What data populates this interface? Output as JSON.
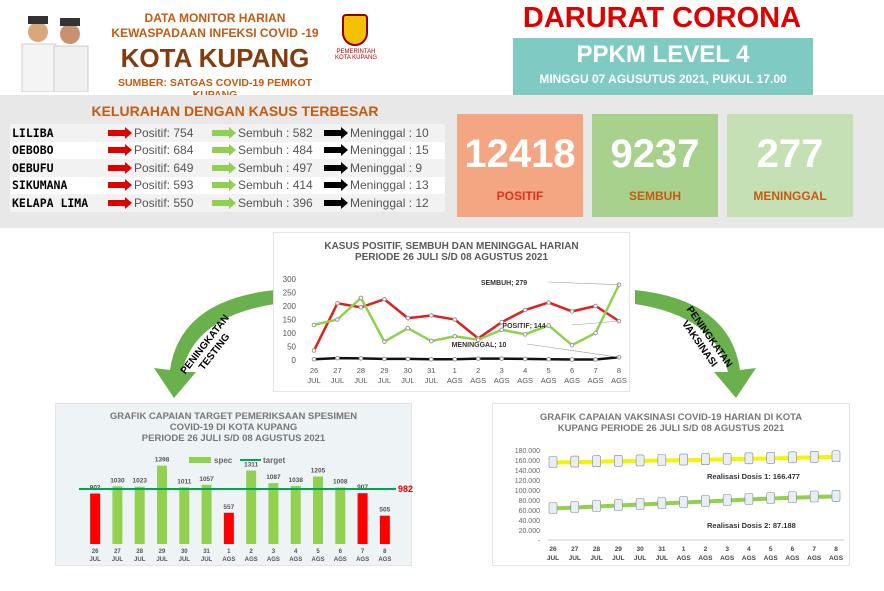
{
  "header": {
    "line1": "DATA MONITOR HARIAN",
    "line2": "KEWASPADAAN INFEKSI COVID -19",
    "city": "KOTA KUPANG",
    "source": "SUMBER: SATGAS COVID-19 PEMKOT KUPANG",
    "logo_text": "PEMERINTAH KOTA KUPANG",
    "emergency": "DARURAT CORONA",
    "level": "PPKM LEVEL 4",
    "date": "MINGGU 07 AGUSUTUS 2021, PUKUL 17.00"
  },
  "table": {
    "title": "KELURAHAN DENGAN KASUS TERBESAR",
    "rows": [
      {
        "name": "LILIBA",
        "positif": "Positif: 754",
        "sembuh": "Sembuh : 582",
        "meninggal": "Meninggal : 10"
      },
      {
        "name": "OEBOBO",
        "positif": "Positif: 684",
        "sembuh": "Sembuh : 484",
        "meninggal": "Meninggal : 15"
      },
      {
        "name": "OEBUFU",
        "positif": "Positif: 649",
        "sembuh": "Sembuh : 497",
        "meninggal": "Meninggal :  9"
      },
      {
        "name": "SIKUMANA",
        "positif": "Positif: 593",
        "sembuh": "Sembuh : 414",
        "meninggal": "Meninggal : 13"
      },
      {
        "name": "KELAPA LIMA",
        "positif": "Positif: 550",
        "sembuh": "Sembuh : 396",
        "meninggal": "Meninggal : 12"
      }
    ],
    "arrow_colors": {
      "positif": "#e00000",
      "sembuh": "#8fd14f",
      "meninggal": "#000000"
    }
  },
  "stats": [
    {
      "value": "12418",
      "label": "POSITIF",
      "bg": "#f4a582",
      "label_color": "#e0301e"
    },
    {
      "value": "9237",
      "label": "SEMBUH",
      "bg": "#a9d18e",
      "label_color": "#c55a11"
    },
    {
      "value": "277",
      "label": "MENINGGAL",
      "bg": "#c5e0b4",
      "label_color": "#c55a11"
    }
  ],
  "arrows": {
    "left": "PENINGKATAN TESTING",
    "right": "PENINGKATAN VAKSINASI",
    "color": "#6ab04c"
  },
  "chart_data": [
    {
      "type": "line",
      "title": "KASUS POSITIF, SEMBUH DAN MENINGGAL HARIAN",
      "subtitle": "PERIODE 26 JULI S/D 08 AGUSTUS 2021",
      "categories": [
        "26 JUL",
        "27 JUL",
        "28 JUL",
        "29 JUL",
        "30 JUL",
        "31 JUL",
        "1 AGS",
        "2 AGS",
        "3 AGS",
        "4 AGS",
        "5 AGS",
        "6 AGS",
        "7 AGS",
        "8 AGS"
      ],
      "ylim": [
        0,
        300
      ],
      "yticks": [
        0,
        50,
        100,
        150,
        200,
        250,
        300
      ],
      "series": [
        {
          "key": "positif",
          "color": "#e02020",
          "values": [
            35,
            210,
            195,
            225,
            155,
            165,
            150,
            80,
            140,
            185,
            213,
            180,
            200,
            144
          ]
        },
        {
          "key": "sembuh",
          "color": "#8fd14f",
          "values": [
            130,
            150,
            230,
            68,
            118,
            70,
            88,
            75,
            112,
            95,
            128,
            55,
            100,
            279
          ]
        },
        {
          "key": "meninggal",
          "color": "#111111",
          "values": [
            3,
            7,
            6,
            4,
            4,
            3,
            3,
            5,
            5,
            4,
            3,
            2,
            2,
            10
          ]
        }
      ],
      "annotations": [
        "SEMBUH; 279",
        "POSITIF; 144",
        "MENINGGAL; 10"
      ]
    },
    {
      "type": "bar",
      "title": "GRAFIK CAPAIAN TARGET PEMERIKSAAN SPESIMEN",
      "subtitle": "COVID-19 DI KOTA KUPANG",
      "subtitle2": "PERIODE 26 JULI S/D 08 AGUSTUS 2021",
      "legend": [
        "spec",
        "target"
      ],
      "categories": [
        "26 JUL",
        "27 JUL",
        "28 JUL",
        "29 JUL",
        "30 JUL",
        "31 JUL",
        "1 AGS",
        "2 AGS",
        "3 AGS",
        "4 AGS",
        "5 AGS",
        "6 AGS",
        "7 AGS",
        "8 AGS"
      ],
      "values": [
        902,
        1030,
        1023,
        1398,
        1011,
        1057,
        557,
        1311,
        1087,
        1038,
        1205,
        1008,
        907,
        505
      ],
      "target": 982,
      "target_label": "982",
      "colors": {
        "above": "#92d050",
        "below": "#ff0000",
        "target": "#00a651"
      }
    },
    {
      "type": "line",
      "title": "GRAFIK CAPAIAN VAKSINASI COVID-19 HARIAN DI KOTA",
      "subtitle": "KUPANG PERIODE 26 JULI S/D 08 AGUSTUS 2021",
      "categories": [
        "26 JUL",
        "27 JUL",
        "28 JUL",
        "29 JUL",
        "30 JUL",
        "31 JUL",
        "1 AGS",
        "2 AGS",
        "3 AGS",
        "4 AGS",
        "5 AGS",
        "6 AGS",
        "7 AGS",
        "8 AGS"
      ],
      "ylim": [
        0,
        180000
      ],
      "yticks": [
        "-",
        "20.000",
        "40.000",
        "60.000",
        "80.000",
        "100.000",
        "120.000",
        "140.000",
        "160.000",
        "180.000"
      ],
      "series": [
        {
          "key": "dosis1",
          "color": "#f5f500",
          "values": [
            155000,
            155800,
            156600,
            157400,
            158200,
            159000,
            159800,
            160600,
            161500,
            162400,
            163300,
            164300,
            165300,
            166477
          ]
        },
        {
          "key": "dosis2",
          "color": "#92d050",
          "values": [
            63000,
            65000,
            67000,
            69000,
            71000,
            73000,
            75000,
            77000,
            79000,
            81000,
            83000,
            84500,
            86000,
            87188
          ]
        }
      ],
      "annotations": [
        "Realisasi Dosis 1: 166.477",
        "Realisasi Dosis 2: 87.188"
      ]
    }
  ]
}
